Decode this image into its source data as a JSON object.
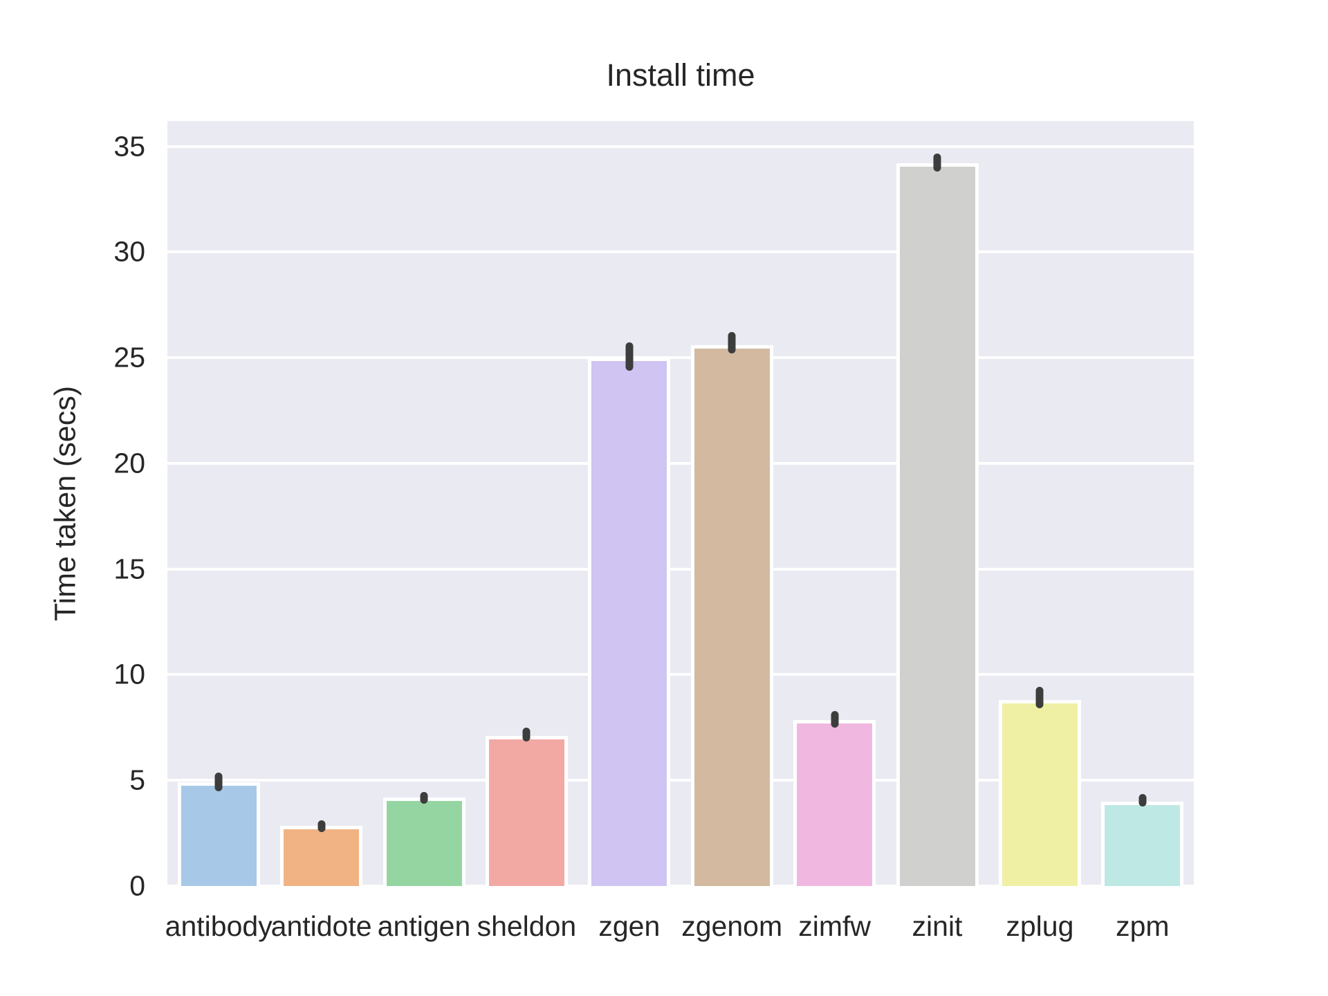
{
  "chart_data": {
    "type": "bar",
    "title": "Install time",
    "xlabel": "",
    "ylabel": "Time taken (secs)",
    "categories": [
      "antibody",
      "antidote",
      "antigen",
      "sheldon",
      "zgen",
      "zgenom",
      "zimfw",
      "zinit",
      "zplug",
      "zpm"
    ],
    "values": [
      4.9,
      2.85,
      4.2,
      7.1,
      25.0,
      25.6,
      7.85,
      34.2,
      8.8,
      4.0
    ],
    "error_intervals": [
      [
        4.5,
        5.4
      ],
      [
        2.55,
        3.1
      ],
      [
        3.9,
        4.45
      ],
      [
        6.85,
        7.5
      ],
      [
        24.4,
        25.75
      ],
      [
        25.2,
        26.2
      ],
      [
        7.5,
        8.3
      ],
      [
        33.8,
        34.65
      ],
      [
        8.4,
        9.4
      ],
      [
        3.75,
        4.35
      ]
    ],
    "bar_colors": [
      "#a8c8e8",
      "#f1b384",
      "#95d5a2",
      "#f2a9a4",
      "#cfc4f2",
      "#d2b9a0",
      "#f0b8e0",
      "#d0d0ce",
      "#f0f0a5",
      "#bee8e4"
    ],
    "yticks": [
      0,
      5,
      10,
      15,
      20,
      25,
      30,
      35
    ],
    "ylim": [
      0,
      36.2
    ],
    "grid": true,
    "legend": false,
    "plot_bg_color": "#eaeaf2",
    "grid_color": "#ffffff",
    "error_bar_color": "#3d3d3d",
    "text_color": "#262626",
    "bar_edge_color": "#ffffff"
  }
}
